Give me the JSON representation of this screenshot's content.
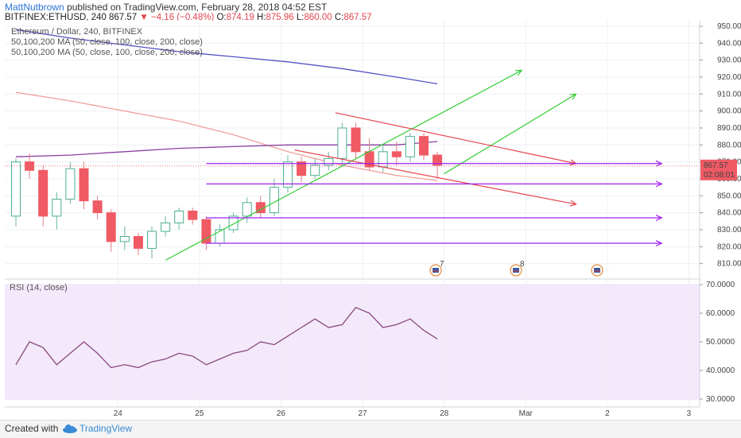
{
  "header": {
    "author": "MattNutbrown",
    "published": "published on TradingView.com, February 28, 2018 04:52 EST",
    "symbol": "BITFINEX:ETHUSD, 240",
    "price": "867.57",
    "change": "−4.16 (−0.48%)",
    "o_label": "O:",
    "o": "874.19",
    "h_label": "H:",
    "h": "875.96",
    "l_label": "L:",
    "l": "860.00",
    "c_label": "C:",
    "c": "867.57"
  },
  "legend": {
    "title": "Ethereum / Dollar, 240, BITFINEX",
    "ma1": "50,100,200 MA (50, close, 100, close, 200, close)",
    "ma2": "50,100,200 MA (50, close, 100, close, 200, close)"
  },
  "rsi": {
    "label": "RSI (14, close)"
  },
  "price_badge": {
    "price": "867.57",
    "countdown": "02:08:01"
  },
  "events": [
    "7",
    "8",
    ""
  ],
  "footer": {
    "created": "Created with",
    "brand": "TradingView"
  },
  "colors": {
    "up": "#ffffff",
    "up_border": "#4caf93",
    "down": "#ef5a64",
    "wick": "#6bb5a5",
    "ma50": "#8a3fa0",
    "ma100": "#f0a09a",
    "ma200": "#5552c4",
    "green_line": "#33cc33",
    "red_line": "#e6464f",
    "purple_line": "#a020f0",
    "rsi_bg": "#f3e9fb",
    "rsi_line": "#8a4a7d"
  },
  "chart_data": {
    "type": "candlestick",
    "title": "Ethereum / Dollar, 240, BITFINEX",
    "price_axis": {
      "min": 815,
      "max": 950,
      "ticks": [
        950,
        940,
        930,
        920,
        910,
        900,
        890,
        880,
        870,
        860,
        850,
        840,
        830,
        820,
        810
      ]
    },
    "x_ticks": [
      "24",
      "25",
      "26",
      "27",
      "28",
      "Mar",
      "2",
      "3"
    ],
    "x_tick_index": [
      7.5,
      13.5,
      19.5,
      25.5,
      31.5,
      37.5,
      43.5,
      49.5
    ],
    "candles": [
      {
        "i": 0,
        "o": 838,
        "c": 870,
        "h": 872,
        "l": 832
      },
      {
        "i": 1,
        "o": 870,
        "c": 865,
        "h": 875,
        "l": 860
      },
      {
        "i": 2,
        "o": 865,
        "c": 838,
        "h": 868,
        "l": 832
      },
      {
        "i": 3,
        "o": 838,
        "c": 848,
        "h": 852,
        "l": 830
      },
      {
        "i": 4,
        "o": 848,
        "c": 866,
        "h": 870,
        "l": 845
      },
      {
        "i": 5,
        "o": 866,
        "c": 847,
        "h": 870,
        "l": 842
      },
      {
        "i": 6,
        "o": 847,
        "c": 840,
        "h": 850,
        "l": 836
      },
      {
        "i": 7,
        "o": 840,
        "c": 823,
        "h": 842,
        "l": 817
      },
      {
        "i": 8,
        "o": 823,
        "c": 826,
        "h": 832,
        "l": 818
      },
      {
        "i": 9,
        "o": 826,
        "c": 819,
        "h": 828,
        "l": 815
      },
      {
        "i": 10,
        "o": 819,
        "c": 829,
        "h": 832,
        "l": 813
      },
      {
        "i": 11,
        "o": 829,
        "c": 834,
        "h": 838,
        "l": 826
      },
      {
        "i": 12,
        "o": 834,
        "c": 841,
        "h": 843,
        "l": 830
      },
      {
        "i": 13,
        "o": 841,
        "c": 836,
        "h": 843,
        "l": 833
      },
      {
        "i": 14,
        "o": 836,
        "c": 822,
        "h": 838,
        "l": 818
      },
      {
        "i": 15,
        "o": 822,
        "c": 830,
        "h": 833,
        "l": 820
      },
      {
        "i": 16,
        "o": 830,
        "c": 838,
        "h": 840,
        "l": 828
      },
      {
        "i": 17,
        "o": 838,
        "c": 846,
        "h": 849,
        "l": 834
      },
      {
        "i": 18,
        "o": 846,
        "c": 840,
        "h": 850,
        "l": 837
      },
      {
        "i": 19,
        "o": 840,
        "c": 855,
        "h": 860,
        "l": 838
      },
      {
        "i": 20,
        "o": 855,
        "c": 870,
        "h": 874,
        "l": 852
      },
      {
        "i": 21,
        "o": 870,
        "c": 862,
        "h": 873,
        "l": 858
      },
      {
        "i": 22,
        "o": 862,
        "c": 868,
        "h": 872,
        "l": 860
      },
      {
        "i": 23,
        "o": 868,
        "c": 872,
        "h": 876,
        "l": 865
      },
      {
        "i": 24,
        "o": 872,
        "c": 890,
        "h": 893,
        "l": 868
      },
      {
        "i": 25,
        "o": 890,
        "c": 876,
        "h": 893,
        "l": 872
      },
      {
        "i": 26,
        "o": 876,
        "c": 867,
        "h": 884,
        "l": 865
      },
      {
        "i": 27,
        "o": 867,
        "c": 876,
        "h": 880,
        "l": 864
      },
      {
        "i": 28,
        "o": 876,
        "c": 873,
        "h": 882,
        "l": 868
      },
      {
        "i": 29,
        "o": 873,
        "c": 885,
        "h": 887,
        "l": 870
      },
      {
        "i": 30,
        "o": 885,
        "c": 874,
        "h": 887,
        "l": 871
      },
      {
        "i": 31,
        "o": 874,
        "c": 868,
        "h": 876,
        "l": 860
      }
    ],
    "ma50": [
      [
        0,
        873
      ],
      [
        4,
        874
      ],
      [
        8,
        876
      ],
      [
        12,
        878
      ],
      [
        16,
        879
      ],
      [
        20,
        880
      ],
      [
        24,
        880
      ],
      [
        28,
        880
      ],
      [
        31,
        882
      ]
    ],
    "ma100": [
      [
        0,
        911
      ],
      [
        4,
        906
      ],
      [
        8,
        900
      ],
      [
        12,
        894
      ],
      [
        16,
        886
      ],
      [
        20,
        876
      ],
      [
        24,
        868
      ],
      [
        28,
        862
      ],
      [
        31,
        859
      ]
    ],
    "ma200": [
      [
        0,
        948
      ],
      [
        4,
        943
      ],
      [
        8,
        939
      ],
      [
        12,
        935
      ],
      [
        16,
        932
      ],
      [
        20,
        929
      ],
      [
        24,
        925
      ],
      [
        28,
        920
      ],
      [
        31,
        916
      ]
    ],
    "lines": [
      {
        "color": "green",
        "from": [
          11,
          812
        ],
        "to": [
          37.2,
          924
        ]
      },
      {
        "color": "green",
        "from": [
          31.5,
          863
        ],
        "to": [
          41.2,
          910
        ]
      },
      {
        "color": "red",
        "from": [
          23.5,
          899
        ],
        "to": [
          41.2,
          869
        ]
      },
      {
        "color": "red",
        "from": [
          20.5,
          877
        ],
        "to": [
          41.2,
          845
        ]
      },
      {
        "color": "purple",
        "from": [
          14,
          869
        ],
        "to": [
          47.5,
          869
        ]
      },
      {
        "color": "purple",
        "from": [
          14,
          857
        ],
        "to": [
          47.5,
          857
        ]
      },
      {
        "color": "purple",
        "from": [
          14,
          837
        ],
        "to": [
          47.5,
          837
        ]
      },
      {
        "color": "purple",
        "from": [
          14,
          822
        ],
        "to": [
          47.5,
          822
        ]
      }
    ],
    "rsi": {
      "min": 30,
      "max": 70,
      "ticks": [
        "70.0000",
        "60.0000",
        "50.0000",
        "40.0000",
        "30.0000"
      ],
      "values": [
        [
          0,
          42
        ],
        [
          1,
          50
        ],
        [
          2,
          48
        ],
        [
          3,
          42
        ],
        [
          4,
          46
        ],
        [
          5,
          50
        ],
        [
          6,
          46
        ],
        [
          7,
          41
        ],
        [
          8,
          42
        ],
        [
          9,
          41
        ],
        [
          10,
          43
        ],
        [
          11,
          44
        ],
        [
          12,
          46
        ],
        [
          13,
          45
        ],
        [
          14,
          42
        ],
        [
          15,
          44
        ],
        [
          16,
          46
        ],
        [
          17,
          47
        ],
        [
          18,
          50
        ],
        [
          19,
          49
        ],
        [
          20,
          52
        ],
        [
          21,
          55
        ],
        [
          22,
          58
        ],
        [
          23,
          55
        ],
        [
          24,
          56
        ],
        [
          25,
          62
        ],
        [
          26,
          60
        ],
        [
          27,
          55
        ],
        [
          28,
          56
        ],
        [
          29,
          58
        ],
        [
          30,
          54
        ],
        [
          31,
          51
        ]
      ]
    }
  }
}
